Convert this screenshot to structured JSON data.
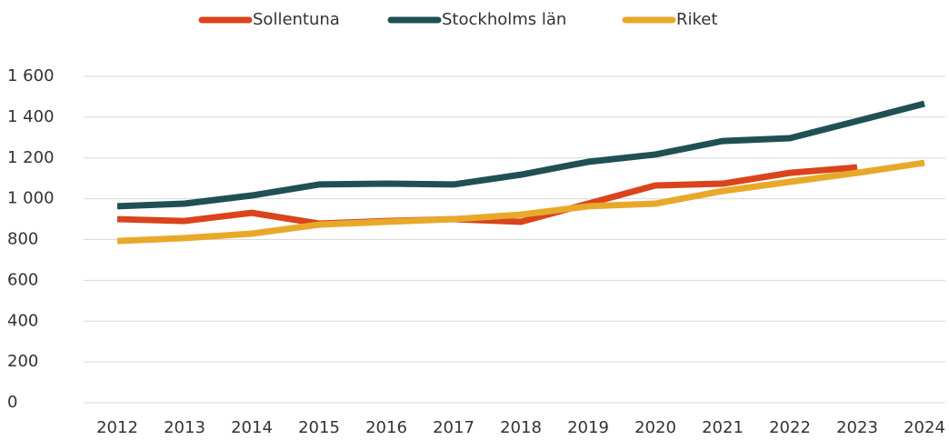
{
  "chart_data": {
    "type": "line",
    "categories": [
      "2012",
      "2013",
      "2014",
      "2015",
      "2016",
      "2017",
      "2018",
      "2019",
      "2020",
      "2021",
      "2022",
      "2023",
      "2024"
    ],
    "series": [
      {
        "name": "Sollentuna",
        "color": "#d9441c",
        "values": [
          900,
          891,
          931,
          878,
          891,
          900,
          887,
          976,
          1065,
          1074,
          1127,
          1154,
          null
        ]
      },
      {
        "name": "Stockholms län",
        "color": "#1f5054",
        "values": [
          963,
          976,
          1016,
          1070,
          1074,
          1070,
          1118,
          1181,
          1217,
          1283,
          1297,
          1381,
          1466
        ]
      },
      {
        "name": "Riket",
        "color": "#e8a92a",
        "values": [
          793,
          807,
          829,
          873,
          887,
          900,
          922,
          963,
          976,
          1038,
          1083,
          1127,
          1176
        ]
      }
    ],
    "ylim": [
      0,
      1600
    ],
    "yticks": [
      0,
      200,
      400,
      600,
      800,
      {
        "value": 1000,
        "label": "1 000"
      },
      {
        "value": 1200,
        "label": "1 200"
      },
      {
        "value": 1400,
        "label": "1 400"
      },
      {
        "value": 1600,
        "label": "1 600"
      }
    ],
    "grid": true,
    "legend": "top"
  }
}
